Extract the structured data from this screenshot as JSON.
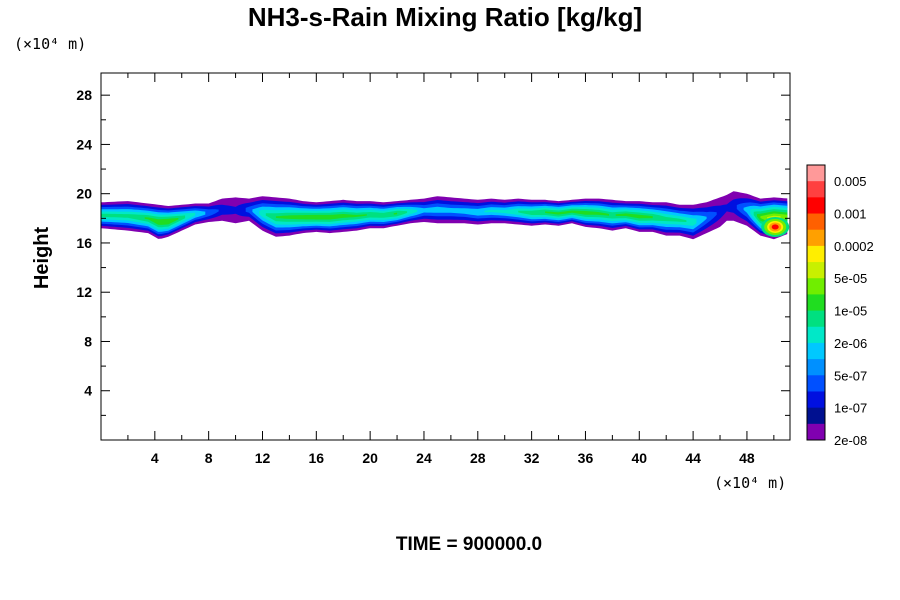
{
  "chart_data": {
    "type": "heatmap",
    "title": "NH3-s-Rain Mixing Ratio [kg/kg]",
    "ylabel": "Height",
    "xlabel": "",
    "x_unit": "(×10⁴ m)",
    "y_unit": "(×10⁴ m)",
    "xlim": [
      0,
      51.2
    ],
    "ylim": [
      0,
      29.8
    ],
    "x_ticks": [
      4,
      8,
      12,
      16,
      20,
      24,
      28,
      32,
      36,
      40,
      44,
      48
    ],
    "y_ticks": [
      4,
      8,
      12,
      16,
      20,
      24,
      28
    ],
    "x_tick_labels": [
      "4",
      "8",
      "12",
      "16",
      "20",
      "24",
      "28",
      "32",
      "36",
      "40",
      "44",
      "48"
    ],
    "y_tick_labels": [
      "4",
      "8",
      "12",
      "16",
      "20",
      "24",
      "28"
    ],
    "colorbar": {
      "labels": [
        "0.005",
        "0.001",
        "0.0002",
        "5e-05",
        "1e-05",
        "2e-06",
        "5e-07",
        "1e-07",
        "2e-08"
      ],
      "colors": [
        "#ff9999",
        "#ff4040",
        "#ff0000",
        "#ff6000",
        "#ffa000",
        "#ffee00",
        "#c8f000",
        "#70ee00",
        "#20dd20",
        "#00e080",
        "#00e8c8",
        "#00c8ff",
        "#0090ff",
        "#0050ff",
        "#0010e0",
        "#001090",
        "#8000b0"
      ]
    },
    "field_levels_colors": [
      "#8000b0",
      "#0010e0",
      "#0050ff",
      "#00c8ff",
      "#00e8c8",
      "#00e080",
      "#20dd20",
      "#70ee00",
      "#c8f000",
      "#ffee00",
      "#ffa000",
      "#ff6000",
      "#ff0000"
    ],
    "field_profile": {
      "x": [
        0,
        2,
        3.5,
        4.3,
        5,
        6,
        7,
        8,
        9,
        10,
        11,
        12,
        13,
        14,
        15,
        16,
        17,
        18,
        19,
        20,
        21,
        22,
        23,
        24,
        25,
        26,
        27,
        28,
        29,
        30,
        31,
        32,
        33,
        34,
        35,
        36,
        37,
        38,
        39,
        40,
        41,
        42,
        43,
        44,
        45,
        46,
        46.5,
        47,
        48,
        49,
        50,
        51.2
      ],
      "bottom": [
        17.2,
        17.0,
        16.8,
        16.3,
        16.5,
        17.0,
        17.5,
        17.7,
        17.8,
        17.6,
        17.8,
        17.0,
        16.5,
        16.6,
        16.8,
        16.9,
        16.8,
        16.9,
        17.0,
        17.2,
        17.2,
        17.4,
        17.6,
        17.7,
        17.6,
        17.6,
        17.6,
        17.5,
        17.6,
        17.6,
        17.5,
        17.4,
        17.5,
        17.4,
        17.6,
        17.3,
        17.2,
        17.0,
        17.2,
        16.9,
        16.9,
        16.6,
        16.6,
        16.3,
        16.8,
        17.3,
        17.8,
        17.8,
        17.4,
        16.6,
        16.3,
        16.8
      ],
      "top": [
        19.3,
        19.4,
        19.2,
        19.1,
        19.0,
        19.1,
        19.2,
        19.2,
        19.6,
        19.7,
        19.6,
        19.8,
        19.7,
        19.6,
        19.4,
        19.3,
        19.4,
        19.5,
        19.4,
        19.4,
        19.3,
        19.4,
        19.5,
        19.6,
        19.8,
        19.7,
        19.6,
        19.5,
        19.6,
        19.5,
        19.6,
        19.5,
        19.5,
        19.4,
        19.5,
        19.6,
        19.6,
        19.5,
        19.4,
        19.4,
        19.3,
        19.3,
        19.1,
        19.1,
        19.3,
        19.7,
        19.9,
        20.2,
        20.0,
        19.6,
        19.7,
        19.6
      ],
      "core": [
        0.62,
        0.62,
        0.7,
        0.78,
        0.8,
        0.65,
        0.5,
        0.35,
        0.2,
        0.15,
        0.3,
        0.55,
        0.68,
        0.72,
        0.75,
        0.77,
        0.76,
        0.74,
        0.7,
        0.68,
        0.67,
        0.7,
        0.55,
        0.4,
        0.42,
        0.4,
        0.42,
        0.45,
        0.48,
        0.5,
        0.58,
        0.65,
        0.7,
        0.72,
        0.72,
        0.75,
        0.72,
        0.68,
        0.72,
        0.74,
        0.7,
        0.62,
        0.6,
        0.55,
        0.35,
        0.2,
        0.15,
        0.2,
        0.4,
        0.8,
        1.0,
        0.8
      ]
    },
    "hotspot": {
      "x": 50.1,
      "y": 17.3,
      "level": 11
    }
  },
  "footer": {
    "time_label": "TIME = 900000.0"
  }
}
